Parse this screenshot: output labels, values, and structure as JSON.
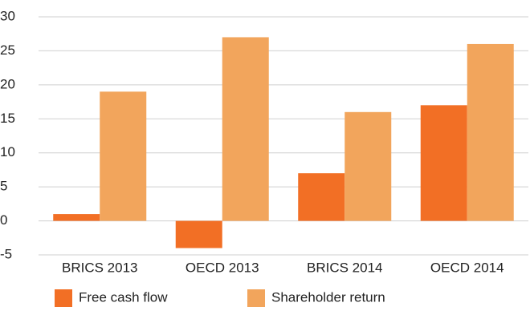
{
  "chart_data": {
    "type": "bar",
    "categories": [
      "BRICS 2013",
      "OECD 2013",
      "BRICS 2014",
      "OECD 2014"
    ],
    "series": [
      {
        "name": "Free cash flow",
        "color": "#f26f25",
        "values": [
          1,
          -4,
          7,
          17
        ]
      },
      {
        "name": "Shareholder return",
        "color": "#f2a55c",
        "values": [
          19,
          27,
          16,
          26
        ]
      }
    ],
    "ylim": [
      -5,
      30
    ],
    "yticks": [
      -5,
      0,
      5,
      10,
      15,
      20,
      25,
      30
    ],
    "grid": true,
    "legend": "bottom"
  }
}
